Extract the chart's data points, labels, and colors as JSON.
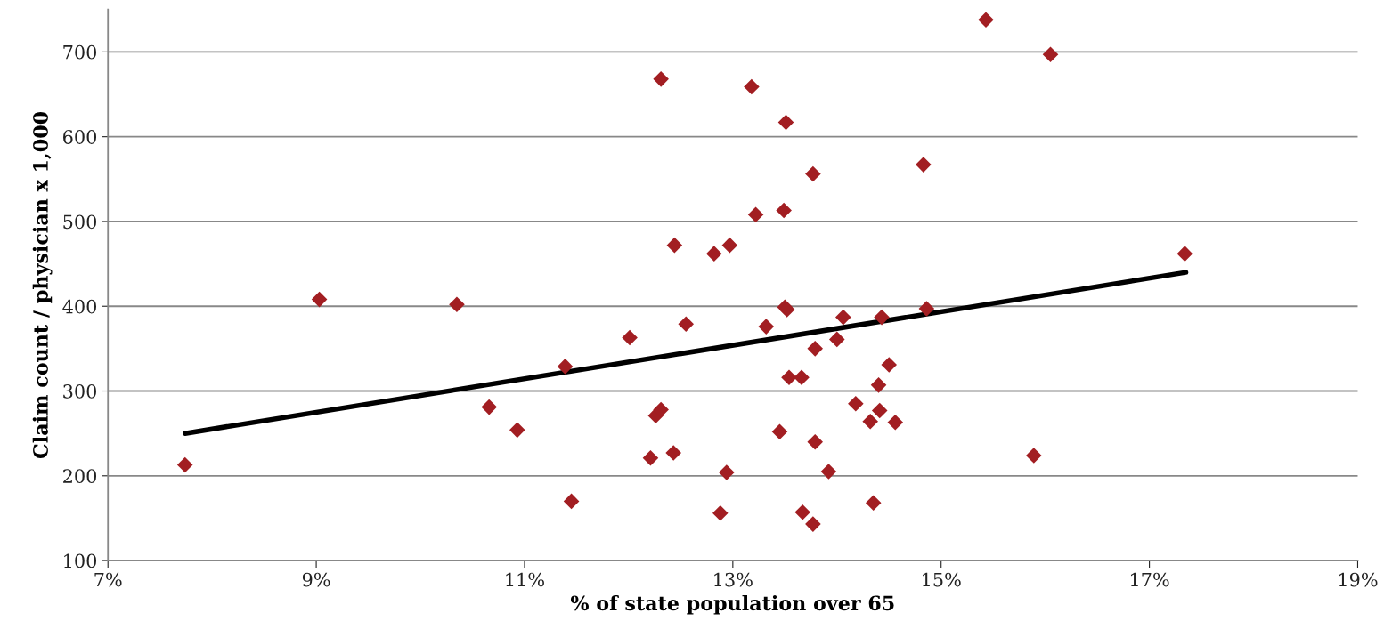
{
  "chart_data": {
    "type": "scatter",
    "xlabel": "% of state population over 65",
    "ylabel": "Claim count / physician x 1,000",
    "series": [
      {
        "color": "#a21e22",
        "marker": "diamond",
        "x": [
          7.74,
          9.03,
          10.35,
          10.66,
          10.93,
          11.39,
          11.45,
          12.01,
          12.21,
          12.26,
          12.31,
          12.31,
          12.43,
          12.44,
          12.55,
          12.82,
          12.88,
          12.94,
          12.97,
          13.18,
          13.22,
          13.32,
          13.45,
          13.49,
          13.5,
          13.52,
          13.51,
          13.54,
          13.66,
          13.67,
          13.77,
          13.77,
          13.79,
          13.79,
          13.92,
          14.0,
          14.06,
          14.18,
          14.32,
          14.35,
          14.4,
          14.41,
          14.43,
          14.5,
          14.56,
          14.83,
          14.86,
          15.43,
          15.89,
          16.05,
          17.34
        ],
        "values": [
          213,
          408,
          402,
          281,
          254,
          329,
          170,
          363,
          221,
          271,
          278,
          668,
          227,
          472,
          379,
          462,
          156,
          204,
          472,
          659,
          508,
          376,
          252,
          513,
          399,
          396,
          617,
          316,
          316,
          157,
          143,
          556,
          350,
          240,
          205,
          361,
          387,
          285,
          264,
          168,
          307,
          277,
          387,
          331,
          263,
          567,
          397,
          738,
          224,
          697,
          462
        ]
      },
      {
        "type": "line",
        "color": "#000000",
        "marker": "none",
        "line_style": "solid",
        "x": [
          7.74,
          17.35
        ],
        "values": [
          250,
          440
        ]
      }
    ],
    "xlim": [
      7,
      19
    ],
    "xticks": [
      {
        "value": 7,
        "label": "7%"
      },
      {
        "value": 9,
        "label": "9%"
      },
      {
        "value": 11,
        "label": "11%"
      },
      {
        "value": 13,
        "label": "13%"
      },
      {
        "value": 15,
        "label": "15%"
      },
      {
        "value": 17,
        "label": "17%"
      },
      {
        "value": 19,
        "label": "19%"
      }
    ],
    "ylim": [
      100,
      750
    ],
    "yticks": [
      100,
      200,
      300,
      400,
      500,
      600,
      700
    ],
    "grid": "y",
    "legend": false
  }
}
